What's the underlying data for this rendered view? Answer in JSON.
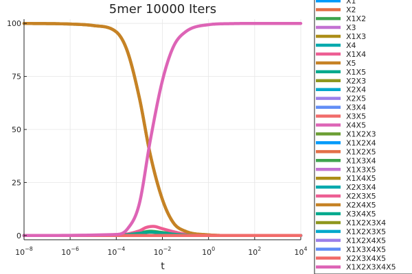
{
  "chart_data": {
    "type": "line",
    "title": "5mer 10000 Iters",
    "xlabel": "t",
    "ylabel": "",
    "xscale": "log10",
    "xlim": [
      1e-08,
      10000.0
    ],
    "ylim": [
      -2,
      102
    ],
    "xticks": [
      {
        "value": 1e-08,
        "base": "10",
        "exp": "−8"
      },
      {
        "value": 1e-06,
        "base": "10",
        "exp": "−6"
      },
      {
        "value": 0.0001,
        "base": "10",
        "exp": "−4"
      },
      {
        "value": 0.01,
        "base": "10",
        "exp": "−2"
      },
      {
        "value": 1.0,
        "base": "10",
        "exp": "0"
      },
      {
        "value": 100.0,
        "base": "10",
        "exp": "2"
      },
      {
        "value": 10000.0,
        "base": "10",
        "exp": "4"
      }
    ],
    "yticks": [
      {
        "value": 0,
        "label": "0"
      },
      {
        "value": 25,
        "label": "25"
      },
      {
        "value": 50,
        "label": "50"
      },
      {
        "value": 75,
        "label": "75"
      },
      {
        "value": 100,
        "label": "100"
      }
    ],
    "grid": true,
    "legend_position": "outside-right",
    "series": [
      {
        "name": "X1",
        "color": "#009AFA",
        "x": [
          1e-08,
          10000.0
        ],
        "y": [
          0,
          0
        ]
      },
      {
        "name": "X2",
        "color": "#E36F47",
        "x": [
          1e-08,
          10000.0
        ],
        "y": [
          0,
          0
        ]
      },
      {
        "name": "X1X2",
        "color": "#3EA44E",
        "x": [
          1e-08,
          0.0001,
          0.001,
          0.003,
          0.01,
          0.1,
          1,
          10000.0
        ],
        "y": [
          0,
          0.1,
          1.2,
          2.0,
          1.4,
          0.3,
          0,
          0
        ]
      },
      {
        "name": "X3",
        "color": "#C371D2",
        "x": [
          1e-08,
          10000.0
        ],
        "y": [
          0,
          0
        ]
      },
      {
        "name": "X1X3",
        "color": "#AC8E18",
        "x": [
          1e-08,
          1e-06,
          1e-05,
          0.0001,
          0.0003,
          0.001,
          0.003,
          0.01,
          0.03,
          0.1,
          1,
          10,
          10000.0
        ],
        "y": [
          100,
          99.7,
          99,
          96,
          87,
          65,
          38,
          17,
          6,
          2,
          0.3,
          0,
          0
        ]
      },
      {
        "name": "X4",
        "color": "#00A9AD",
        "x": [
          1e-08,
          10000.0
        ],
        "y": [
          0,
          0
        ]
      },
      {
        "name": "X1X4",
        "color": "#ED5E93",
        "x": [
          1e-08,
          0.0001,
          0.001,
          0.002,
          0.004,
          0.01,
          0.03,
          0.1,
          1,
          10000.0
        ],
        "y": [
          0,
          0.2,
          2.2,
          3.8,
          4.3,
          3.2,
          1.8,
          0.6,
          0,
          0
        ]
      },
      {
        "name": "X5",
        "color": "#C68225",
        "x": [
          1e-08,
          1e-06,
          1e-05,
          0.0001,
          0.0003,
          0.001,
          0.003,
          0.01,
          0.03,
          0.1,
          1,
          10,
          10000.0
        ],
        "y": [
          100,
          99.7,
          99,
          96,
          87,
          65,
          38,
          17,
          6,
          2,
          0.3,
          0,
          0
        ]
      },
      {
        "name": "X1X5",
        "color": "#00A98D",
        "x": [
          1e-08,
          0.0001,
          0.001,
          0.003,
          0.01,
          0.1,
          1,
          10000.0
        ],
        "y": [
          0,
          0.1,
          1.0,
          1.6,
          1.1,
          0.2,
          0,
          0
        ]
      },
      {
        "name": "X2X3",
        "color": "#8E971E",
        "x": [
          1e-08,
          10000.0
        ],
        "y": [
          0,
          0
        ]
      },
      {
        "name": "X2X4",
        "color": "#00A8CB",
        "x": [
          1e-08,
          10000.0
        ],
        "y": [
          0,
          0
        ]
      },
      {
        "name": "X2X5",
        "color": "#9B7FE9",
        "x": [
          1e-08,
          10000.0
        ],
        "y": [
          0,
          0
        ]
      },
      {
        "name": "X3X4",
        "color": "#618DF6",
        "x": [
          1e-08,
          10000.0
        ],
        "y": [
          0,
          0
        ]
      },
      {
        "name": "X3X5",
        "color": "#F16C6A",
        "x": [
          1e-08,
          10000.0
        ],
        "y": [
          0,
          0
        ]
      },
      {
        "name": "X4X5",
        "color": "#DD64B6",
        "x": [
          1e-08,
          10000.0
        ],
        "y": [
          0,
          0
        ]
      },
      {
        "name": "X1X2X3",
        "color": "#6B9E33",
        "x": [
          1e-08,
          10000.0
        ],
        "y": [
          0,
          0
        ]
      },
      {
        "name": "X1X2X4",
        "color": "#009AFA",
        "x": [
          1e-08,
          10000.0
        ],
        "y": [
          0,
          0
        ]
      },
      {
        "name": "X1X2X5",
        "color": "#E36F47",
        "x": [
          1e-08,
          10000.0
        ],
        "y": [
          0,
          0
        ]
      },
      {
        "name": "X1X3X4",
        "color": "#3EA44E",
        "x": [
          1e-08,
          10000.0
        ],
        "y": [
          0,
          0
        ]
      },
      {
        "name": "X1X3X5",
        "color": "#C371D2",
        "x": [
          1e-08,
          10000.0
        ],
        "y": [
          0,
          0
        ]
      },
      {
        "name": "X1X4X5",
        "color": "#AC8E18",
        "x": [
          1e-08,
          10000.0
        ],
        "y": [
          0,
          0
        ]
      },
      {
        "name": "X2X3X4",
        "color": "#00A9AD",
        "x": [
          1e-08,
          10000.0
        ],
        "y": [
          0,
          0
        ]
      },
      {
        "name": "X2X3X5",
        "color": "#ED5E93",
        "x": [
          1e-08,
          10000.0
        ],
        "y": [
          0,
          0
        ]
      },
      {
        "name": "X2X4X5",
        "color": "#C68225",
        "x": [
          1e-08,
          10000.0
        ],
        "y": [
          0,
          0
        ]
      },
      {
        "name": "X3X4X5",
        "color": "#00A98D",
        "x": [
          1e-08,
          10000.0
        ],
        "y": [
          0,
          0
        ]
      },
      {
        "name": "X1X2X3X4",
        "color": "#8E971E",
        "x": [
          1e-08,
          10000.0
        ],
        "y": [
          0,
          0
        ]
      },
      {
        "name": "X1X2X3X5",
        "color": "#00A8CB",
        "x": [
          1e-08,
          10000.0
        ],
        "y": [
          0,
          0
        ]
      },
      {
        "name": "X1X2X4X5",
        "color": "#9B7FE9",
        "x": [
          1e-08,
          10000.0
        ],
        "y": [
          0,
          0
        ]
      },
      {
        "name": "X1X3X4X5",
        "color": "#618DF6",
        "x": [
          1e-08,
          10000.0
        ],
        "y": [
          0,
          0
        ]
      },
      {
        "name": "X2X3X4X5",
        "color": "#F16C6A",
        "x": [
          1e-08,
          10000.0
        ],
        "y": [
          0,
          0
        ]
      },
      {
        "name": "X1X2X3X4X5",
        "color": "#DD64B6",
        "x": [
          1e-08,
          0.0001,
          0.0003,
          0.001,
          0.003,
          0.01,
          0.03,
          0.1,
          1,
          10,
          100.0,
          10000.0
        ],
        "y": [
          0,
          0.5,
          3,
          15,
          45,
          73,
          89,
          96,
          99.4,
          99.9,
          100,
          100
        ]
      }
    ]
  }
}
